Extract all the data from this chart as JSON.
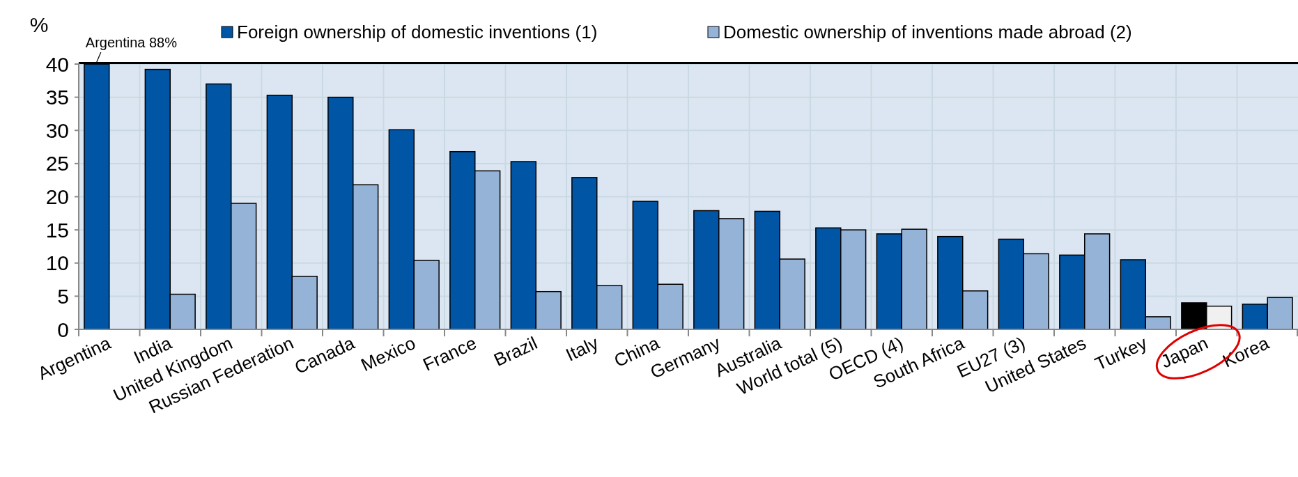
{
  "chart_data": {
    "type": "bar",
    "ylabel": "%",
    "categories": [
      "Argentina",
      "India",
      "United Kingdom",
      "Russian Federation",
      "Canada",
      "Mexico",
      "France",
      "Brazil",
      "Italy",
      "China",
      "Germany",
      "Australia",
      "World total (5)",
      "OECD (4)",
      "South Africa",
      "EU27 (3)",
      "United States",
      "Turkey",
      "Japan",
      "Korea"
    ],
    "series": [
      {
        "name": "Foreign ownership of domestic inventions (1)",
        "color": "#0055a5",
        "values": [
          40,
          39.2,
          37,
          35.3,
          35,
          30.1,
          26.8,
          25.3,
          22.9,
          19.3,
          17.9,
          17.8,
          15.3,
          14.4,
          14,
          13.6,
          11.2,
          10.5,
          null,
          3.8
        ]
      },
      {
        "name": "Domestic ownership of inventions made abroad (2)",
        "color": "#95b3d7",
        "values": [
          null,
          5.3,
          19,
          8,
          21.8,
          10.4,
          23.9,
          5.7,
          6.6,
          6.8,
          16.7,
          10.6,
          15,
          15.1,
          5.8,
          11.4,
          14.4,
          1.9,
          null,
          4.8
        ]
      },
      {
        "color": "#000000",
        "values": [
          null,
          null,
          null,
          null,
          null,
          null,
          null,
          null,
          null,
          null,
          null,
          null,
          null,
          null,
          null,
          null,
          null,
          null,
          4,
          null
        ]
      },
      {
        "color": "#f0f0f0",
        "values": [
          null,
          null,
          null,
          null,
          null,
          null,
          null,
          null,
          null,
          null,
          null,
          null,
          null,
          null,
          null,
          null,
          null,
          null,
          3.5,
          null
        ]
      }
    ],
    "ylim": [
      0,
      40
    ],
    "yticks": [
      0,
      5,
      10,
      15,
      20,
      25,
      30,
      35,
      40
    ],
    "grid": true,
    "legend": "top",
    "annotations": [
      {
        "text": "Argentina  88%",
        "x": "Argentina",
        "y": 40
      }
    ]
  }
}
